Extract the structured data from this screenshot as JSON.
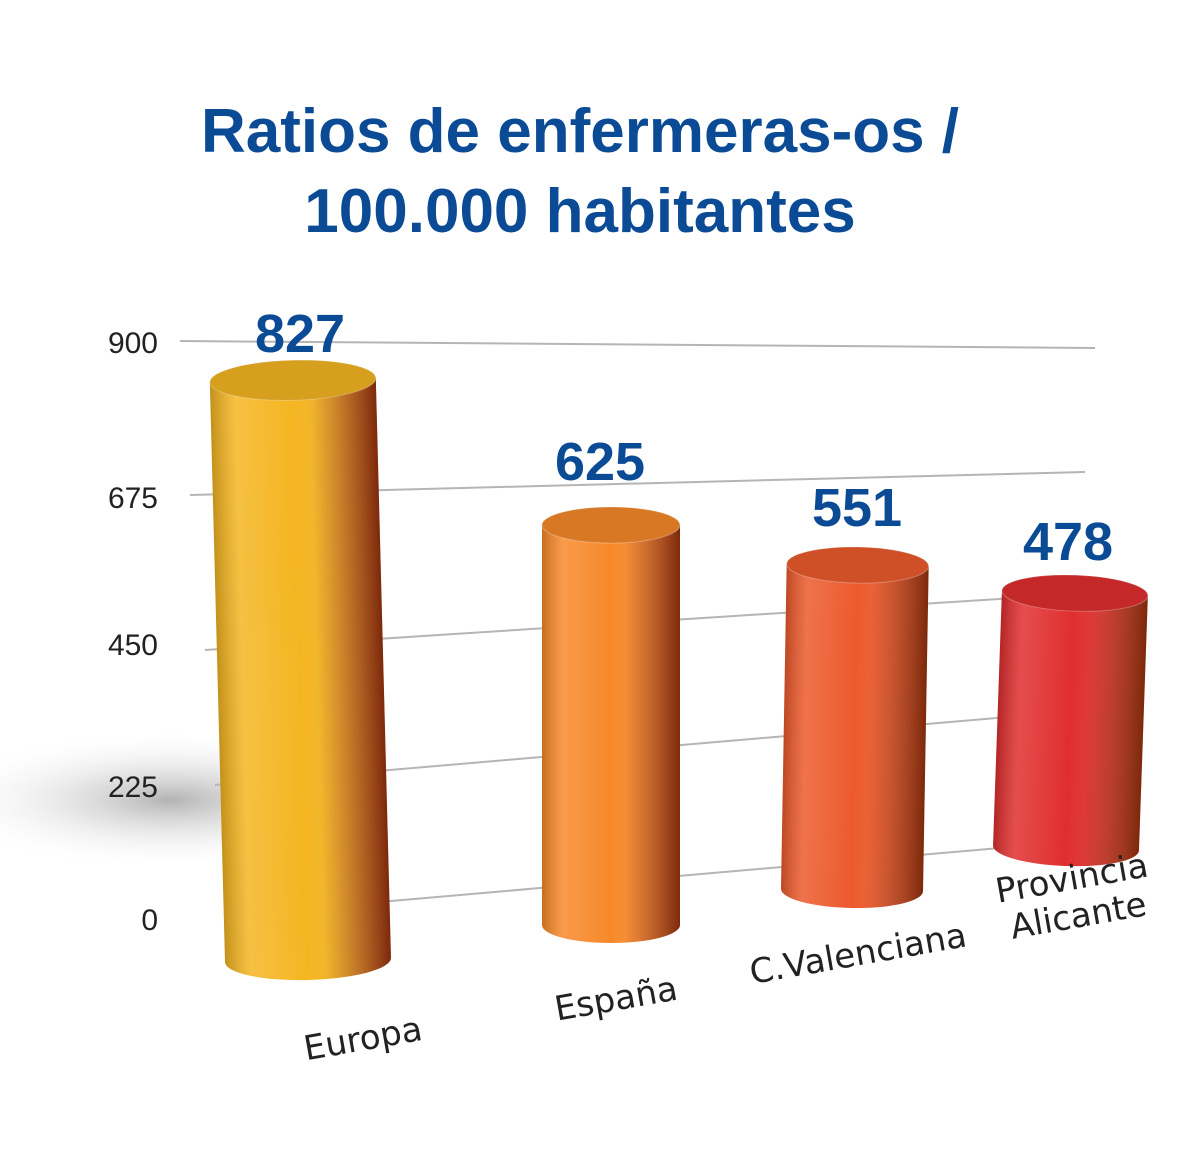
{
  "chart_data": {
    "type": "bar",
    "title_lines": [
      "Ratios de enfermeras-os /",
      "100.000 habitantes"
    ],
    "categories": [
      "Europa",
      "España",
      "C.Valenciana",
      "Provincia Alicante"
    ],
    "category_lines": [
      [
        "Europa"
      ],
      [
        "España"
      ],
      [
        "C.Valenciana"
      ],
      [
        "Provincia",
        "Alicante"
      ]
    ],
    "values": [
      827,
      625,
      551,
      478
    ],
    "data_labels": [
      "827",
      "625",
      "551",
      "478"
    ],
    "colors": [
      "#f4b521",
      "#f7892a",
      "#ec5a2c",
      "#e02e2e"
    ],
    "ylim": [
      0,
      900
    ],
    "yticks": [
      0,
      225,
      450,
      675,
      900
    ],
    "ytick_labels": [
      "0",
      "225",
      "450",
      "675",
      "900"
    ],
    "grid": true,
    "style": "3d-cylinder",
    "xlabel": "",
    "ylabel": ""
  }
}
